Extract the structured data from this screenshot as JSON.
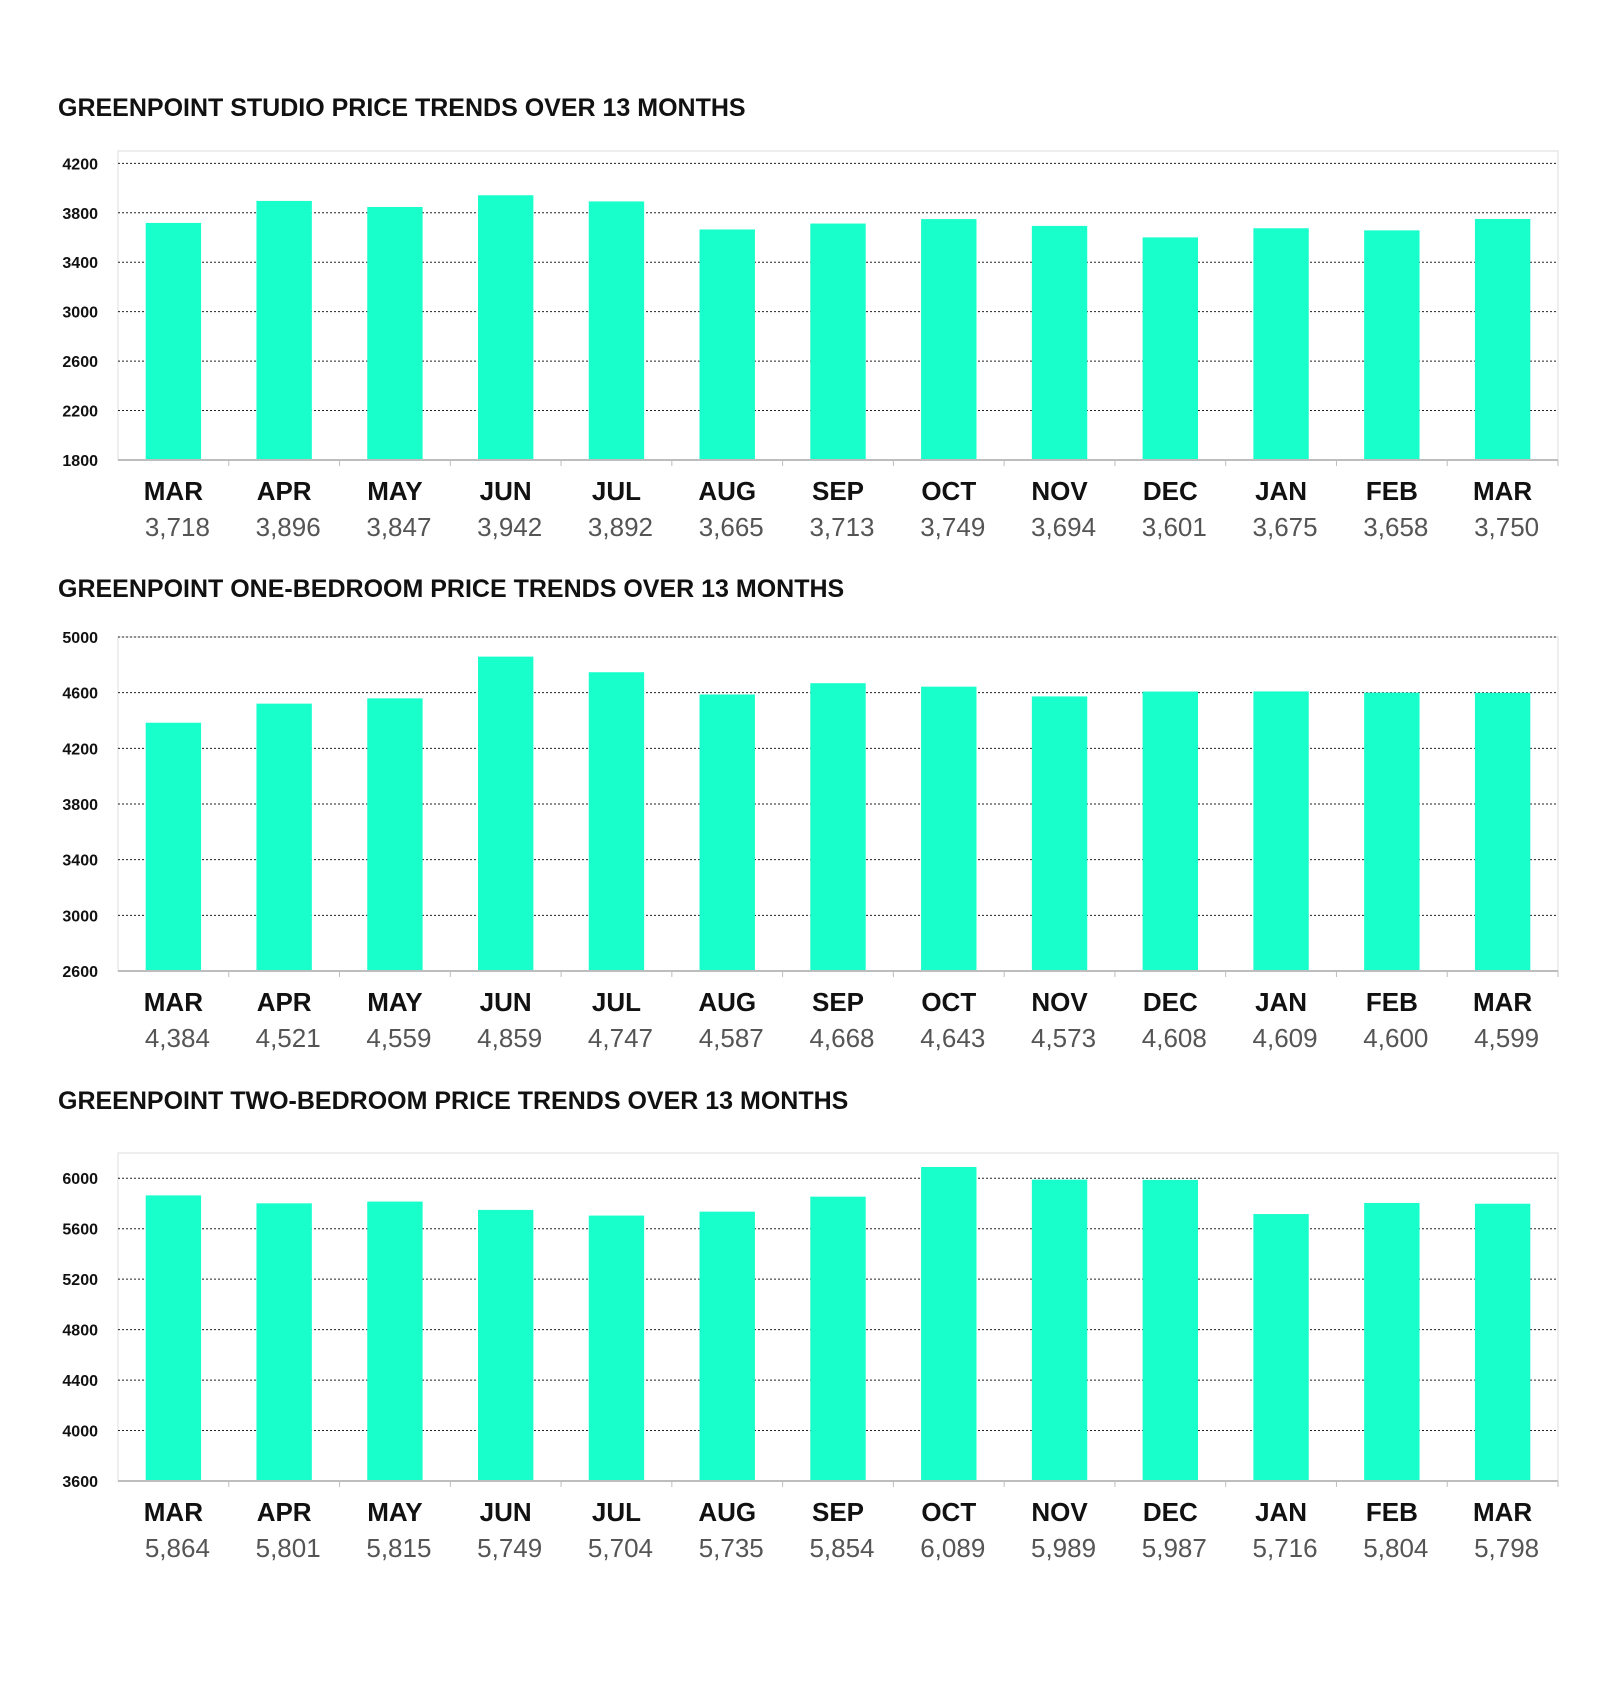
{
  "colors": {
    "bar": "#19ffcc",
    "grid": "#222222",
    "axis": "#bdbdbd",
    "frame": "#dedede"
  },
  "chart_data": [
    {
      "type": "bar",
      "title": "GREENPOINT STUDIO PRICE TRENDS OVER 13 MONTHS",
      "categories": [
        "MAR",
        "APR",
        "MAY",
        "JUN",
        "JUL",
        "AUG",
        "SEP",
        "OCT",
        "NOV",
        "DEC",
        "JAN",
        "FEB",
        "MAR"
      ],
      "values": [
        3718,
        3896,
        3847,
        3942,
        3892,
        3665,
        3713,
        3749,
        3694,
        3601,
        3675,
        3658,
        3750
      ],
      "value_labels": [
        "3,718",
        "3,896",
        "3,847",
        "3,942",
        "3,892",
        "3,665",
        "3,713",
        "3,749",
        "3,694",
        "3,601",
        "3,675",
        "3,658",
        "3,750"
      ],
      "yticks": [
        1800,
        2200,
        2600,
        3000,
        3400,
        3800,
        4200
      ],
      "ylim": [
        1800,
        4300
      ],
      "xlabel": "",
      "ylabel": "",
      "grid": true
    },
    {
      "type": "bar",
      "title": "GREENPOINT ONE-BEDROOM PRICE TRENDS OVER 13 MONTHS",
      "categories": [
        "MAR",
        "APR",
        "MAY",
        "JUN",
        "JUL",
        "AUG",
        "SEP",
        "OCT",
        "NOV",
        "DEC",
        "JAN",
        "FEB",
        "MAR"
      ],
      "values": [
        4384,
        4521,
        4559,
        4859,
        4747,
        4587,
        4668,
        4643,
        4573,
        4608,
        4609,
        4600,
        4599
      ],
      "value_labels": [
        "4,384",
        "4,521",
        "4,559",
        "4,859",
        "4,747",
        "4,587",
        "4,668",
        "4,643",
        "4,573",
        "4,608",
        "4,609",
        "4,600",
        "4,599"
      ],
      "yticks": [
        2600,
        3000,
        3400,
        3800,
        4200,
        4600,
        5000
      ],
      "ylim": [
        2600,
        5000
      ],
      "xlabel": "",
      "ylabel": "",
      "grid": true
    },
    {
      "type": "bar",
      "title": "GREENPOINT TWO-BEDROOM PRICE TRENDS OVER 13 MONTHS",
      "categories": [
        "MAR",
        "APR",
        "MAY",
        "JUN",
        "JUL",
        "AUG",
        "SEP",
        "OCT",
        "NOV",
        "DEC",
        "JAN",
        "FEB",
        "MAR"
      ],
      "values": [
        5864,
        5801,
        5815,
        5749,
        5704,
        5735,
        5854,
        6089,
        5989,
        5987,
        5716,
        5804,
        5798
      ],
      "value_labels": [
        "5,864",
        "5,801",
        "5,815",
        "5,749",
        "5,704",
        "5,735",
        "5,854",
        "6,089",
        "5,989",
        "5,987",
        "5,716",
        "5,804",
        "5,798"
      ],
      "yticks": [
        3600,
        4000,
        4400,
        4800,
        5200,
        5600,
        6000
      ],
      "ylim": [
        3600,
        6200
      ],
      "xlabel": "",
      "ylabel": "",
      "grid": true
    }
  ]
}
